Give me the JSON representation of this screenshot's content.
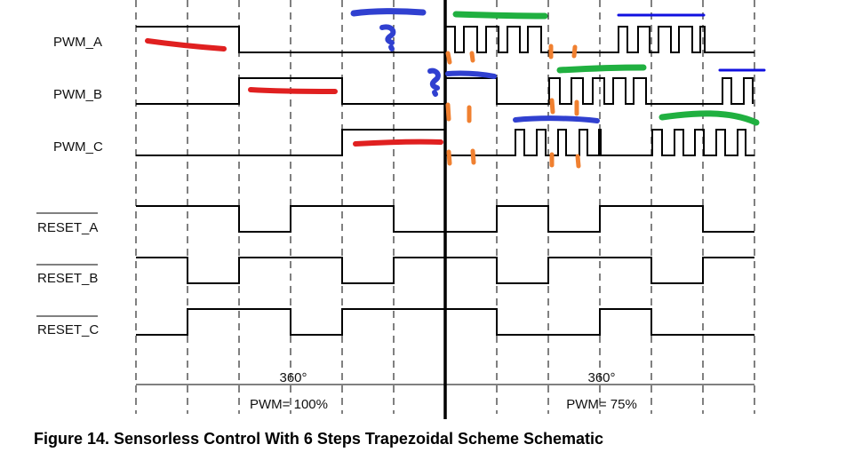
{
  "signals": [
    {
      "label": "PWM_A",
      "overbar": false
    },
    {
      "label": "PWM_B",
      "overbar": false
    },
    {
      "label": "PWM_C",
      "overbar": false
    },
    {
      "label": "RESET_A",
      "overbar": true
    },
    {
      "label": "RESET_B",
      "overbar": true
    },
    {
      "label": "RESET_C",
      "overbar": true
    }
  ],
  "left_section": {
    "angle_label": "360°",
    "pwm_label": "PWM= 100%"
  },
  "right_section": {
    "angle_label": "360°",
    "pwm_label": "PWM= 75%"
  },
  "caption": "Figure 14.  Sensorless Control With 6 Steps Trapezoidal Scheme Schematic",
  "colors": {
    "trace": "#000000",
    "red_mark": "#e02020",
    "blue_mark": "#3040d0",
    "green_mark": "#20b040",
    "orange_mark": "#f08030",
    "bright_blue_mark": "#1010e0"
  }
}
